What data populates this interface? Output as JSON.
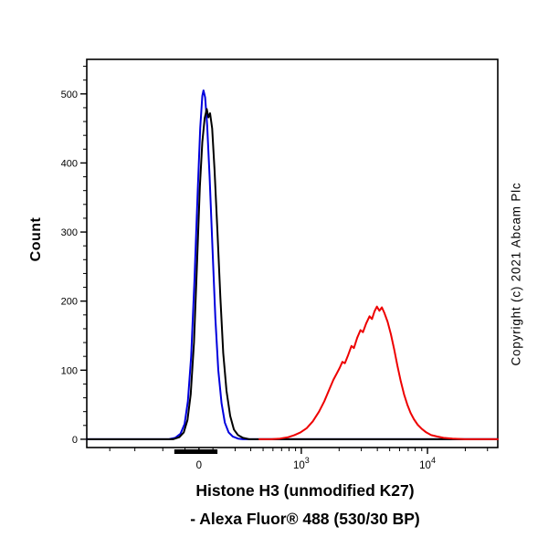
{
  "colors": {
    "background": "#ffffff",
    "frame": "#000000",
    "blue_curve": "#0000dd",
    "black_curve": "#000000",
    "red_curve": "#ee0000"
  },
  "copyright_text": "Copyright (c) 2021 Abcam Plc",
  "chart_data": {
    "type": "line",
    "subtype": "flow-cytometry-histogram",
    "title_lines": [
      "Histone H3 (unmodified K27)",
      "- Alexa Fluor® 488 (530/30 BP)"
    ],
    "ylabel": "Count",
    "x_scale": "biexponential",
    "grid": false,
    "legend": "none",
    "ylim": [
      -12,
      550
    ],
    "yticks": [
      0,
      100,
      200,
      300,
      400,
      500
    ],
    "y_minor_step": 20,
    "x_major_ticks": [
      {
        "label": "0",
        "pos": 0.273
      },
      {
        "label": "10^3",
        "pos": 0.522
      },
      {
        "label": "10^4",
        "pos": 0.829
      }
    ],
    "x_minor_ticks": [
      0.056,
      0.117,
      0.185,
      0.239,
      0.307,
      0.361,
      0.399,
      0.429,
      0.453,
      0.474,
      0.492,
      0.508,
      0.614,
      0.668,
      0.707,
      0.737,
      0.761,
      0.782,
      0.799,
      0.815,
      0.921,
      0.975
    ],
    "gate_marker": {
      "from": 0.213,
      "to": 0.318
    },
    "series": [
      {
        "name": "blue-curve",
        "color": "#0000dd",
        "peak_count": 505,
        "points": [
          [
            0,
            0
          ],
          [
            0.18,
            0
          ],
          [
            0.2,
            0
          ],
          [
            0.215,
            2
          ],
          [
            0.228,
            8
          ],
          [
            0.238,
            22
          ],
          [
            0.246,
            55
          ],
          [
            0.254,
            120
          ],
          [
            0.262,
            230
          ],
          [
            0.27,
            360
          ],
          [
            0.276,
            450
          ],
          [
            0.281,
            497
          ],
          [
            0.284,
            505
          ],
          [
            0.288,
            495
          ],
          [
            0.293,
            455
          ],
          [
            0.299,
            380
          ],
          [
            0.306,
            275
          ],
          [
            0.313,
            175
          ],
          [
            0.32,
            100
          ],
          [
            0.328,
            52
          ],
          [
            0.336,
            24
          ],
          [
            0.345,
            10
          ],
          [
            0.355,
            4
          ],
          [
            0.368,
            1
          ],
          [
            0.38,
            0
          ],
          [
            1,
            0
          ]
        ]
      },
      {
        "name": "black-curve",
        "color": "#000000",
        "peak_count": 478,
        "points": [
          [
            0,
            0
          ],
          [
            0.19,
            0
          ],
          [
            0.21,
            0
          ],
          [
            0.225,
            3
          ],
          [
            0.236,
            10
          ],
          [
            0.245,
            28
          ],
          [
            0.253,
            65
          ],
          [
            0.261,
            140
          ],
          [
            0.268,
            250
          ],
          [
            0.275,
            365
          ],
          [
            0.281,
            430
          ],
          [
            0.287,
            465
          ],
          [
            0.292,
            478
          ],
          [
            0.296,
            466
          ],
          [
            0.3,
            472
          ],
          [
            0.305,
            450
          ],
          [
            0.311,
            390
          ],
          [
            0.318,
            300
          ],
          [
            0.325,
            205
          ],
          [
            0.332,
            125
          ],
          [
            0.34,
            70
          ],
          [
            0.349,
            34
          ],
          [
            0.358,
            14
          ],
          [
            0.368,
            6
          ],
          [
            0.38,
            2
          ],
          [
            0.395,
            0
          ],
          [
            1,
            0
          ]
        ]
      },
      {
        "name": "red-curve",
        "color": "#ee0000",
        "peak_count": 192,
        "points": [
          [
            0.42,
            0
          ],
          [
            0.45,
            0
          ],
          [
            0.47,
            1
          ],
          [
            0.49,
            3
          ],
          [
            0.505,
            6
          ],
          [
            0.52,
            10
          ],
          [
            0.535,
            16
          ],
          [
            0.55,
            26
          ],
          [
            0.565,
            40
          ],
          [
            0.578,
            55
          ],
          [
            0.59,
            72
          ],
          [
            0.6,
            86
          ],
          [
            0.608,
            95
          ],
          [
            0.615,
            103
          ],
          [
            0.622,
            112
          ],
          [
            0.628,
            110
          ],
          [
            0.636,
            122
          ],
          [
            0.644,
            135
          ],
          [
            0.65,
            132
          ],
          [
            0.658,
            147
          ],
          [
            0.666,
            158
          ],
          [
            0.672,
            155
          ],
          [
            0.68,
            168
          ],
          [
            0.688,
            178
          ],
          [
            0.694,
            174
          ],
          [
            0.7,
            185
          ],
          [
            0.706,
            192
          ],
          [
            0.712,
            186
          ],
          [
            0.718,
            191
          ],
          [
            0.724,
            183
          ],
          [
            0.732,
            170
          ],
          [
            0.74,
            152
          ],
          [
            0.748,
            130
          ],
          [
            0.756,
            106
          ],
          [
            0.764,
            84
          ],
          [
            0.772,
            65
          ],
          [
            0.78,
            50
          ],
          [
            0.788,
            38
          ],
          [
            0.796,
            29
          ],
          [
            0.805,
            21
          ],
          [
            0.815,
            15
          ],
          [
            0.826,
            10
          ],
          [
            0.838,
            6
          ],
          [
            0.852,
            4
          ],
          [
            0.868,
            2
          ],
          [
            0.89,
            1
          ],
          [
            0.92,
            0
          ],
          [
            1,
            0
          ]
        ]
      }
    ]
  }
}
